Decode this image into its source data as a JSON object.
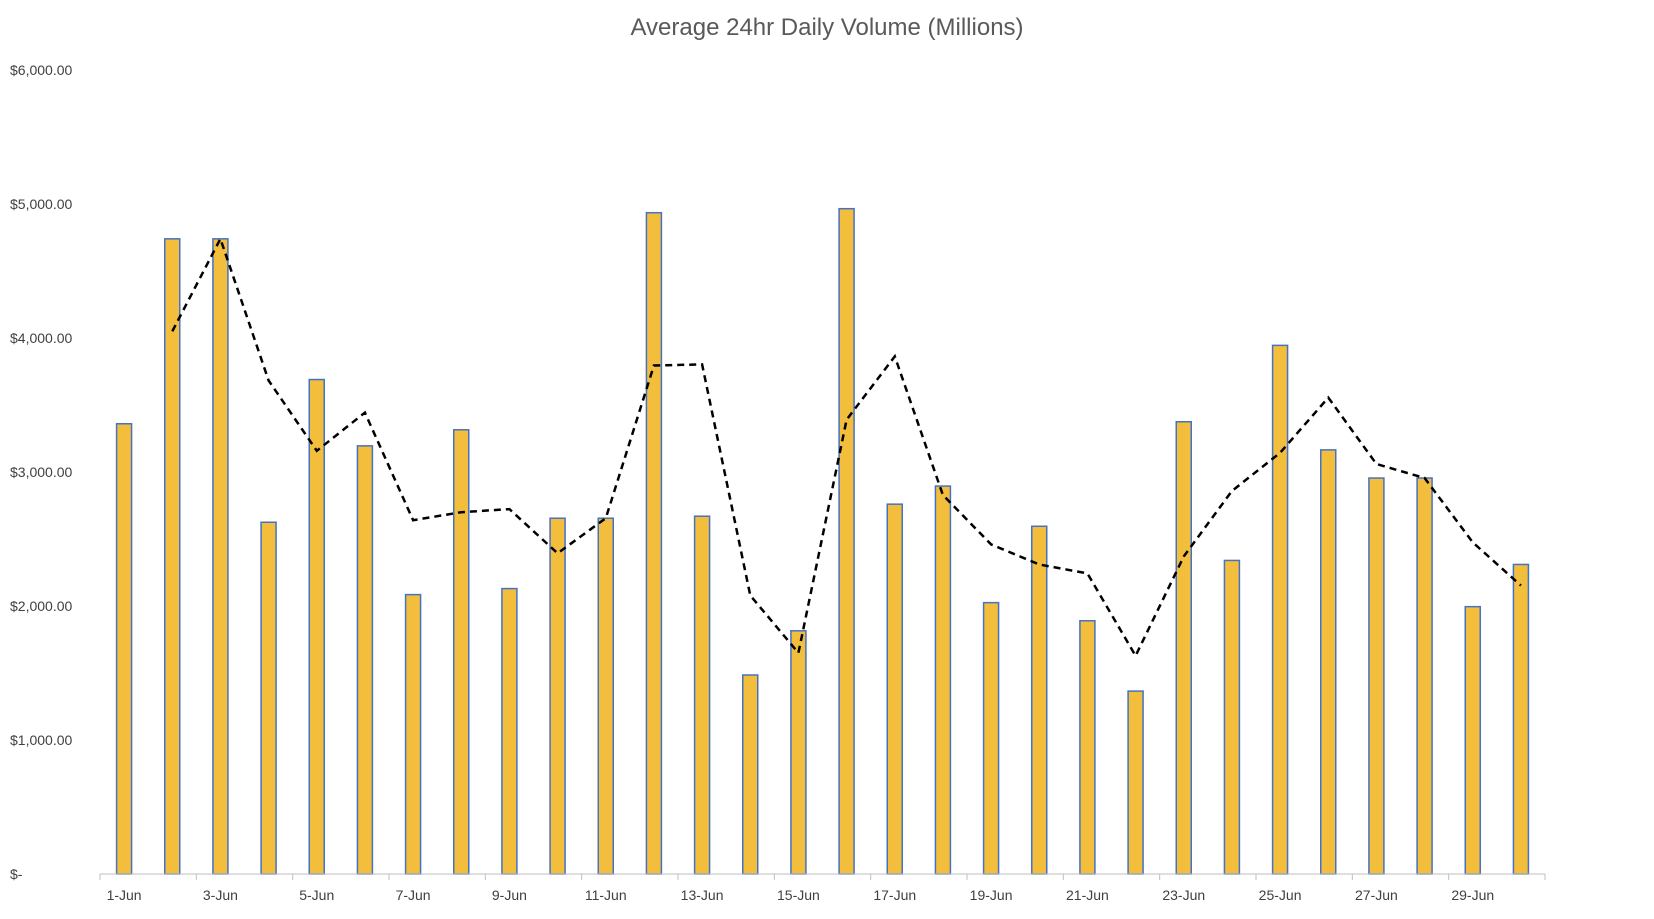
{
  "chart_data": {
    "type": "bar",
    "title": "Average 24hr Daily Volume (Millions)",
    "xlabel": "",
    "ylabel": "",
    "ylim": [
      0,
      6000
    ],
    "yticks": [
      0,
      1000,
      2000,
      3000,
      4000,
      5000,
      6000
    ],
    "ytick_labels": [
      "$-",
      "$1,000.00",
      "$2,000.00",
      "$3,000.00",
      "$4,000.00",
      "$5,000.00",
      "$6,000.00"
    ],
    "categories": [
      "1-Jun",
      "2-Jun",
      "3-Jun",
      "4-Jun",
      "5-Jun",
      "6-Jun",
      "7-Jun",
      "8-Jun",
      "9-Jun",
      "10-Jun",
      "11-Jun",
      "12-Jun",
      "13-Jun",
      "14-Jun",
      "15-Jun",
      "16-Jun",
      "17-Jun",
      "18-Jun",
      "19-Jun",
      "20-Jun",
      "21-Jun",
      "22-Jun",
      "23-Jun",
      "24-Jun",
      "25-Jun",
      "26-Jun",
      "27-Jun",
      "28-Jun",
      "29-Jun",
      "30-Jun"
    ],
    "xtick_labels": [
      "1-Jun",
      "3-Jun",
      "5-Jun",
      "7-Jun",
      "9-Jun",
      "11-Jun",
      "13-Jun",
      "15-Jun",
      "17-Jun",
      "19-Jun",
      "21-Jun",
      "23-Jun",
      "25-Jun",
      "27-Jun",
      "29-Jun"
    ],
    "series": [
      {
        "type": "bar",
        "values": [
          3360,
          4740,
          4740,
          2625,
          3690,
          3195,
          2085,
          3315,
          2130,
          2655,
          2655,
          4935,
          2670,
          1485,
          1815,
          4965,
          2760,
          2895,
          2025,
          2595,
          1890,
          1365,
          3375,
          2340,
          3945,
          3165,
          2955,
          2955,
          1995,
          2310
        ]
      },
      {
        "type": "line",
        "style": "dashed",
        "values": [
          null,
          4050,
          4740,
          3683,
          3158,
          3443,
          2640,
          2700,
          2723,
          2393,
          2655,
          3795,
          3803,
          2078,
          1650,
          3390,
          3863,
          2828,
          2460,
          2310,
          2243,
          1628,
          2370,
          2858,
          3143,
          3555,
          3060,
          2955,
          2475,
          2153
        ]
      }
    ],
    "colors": {
      "bar_fill": "#F4BE3D",
      "bar_stroke": "#4472C4",
      "line": "#000000",
      "axis": "#BFBFBF",
      "title": "#595959",
      "tick_label": "#404040"
    },
    "grid": false,
    "legend": "none"
  }
}
